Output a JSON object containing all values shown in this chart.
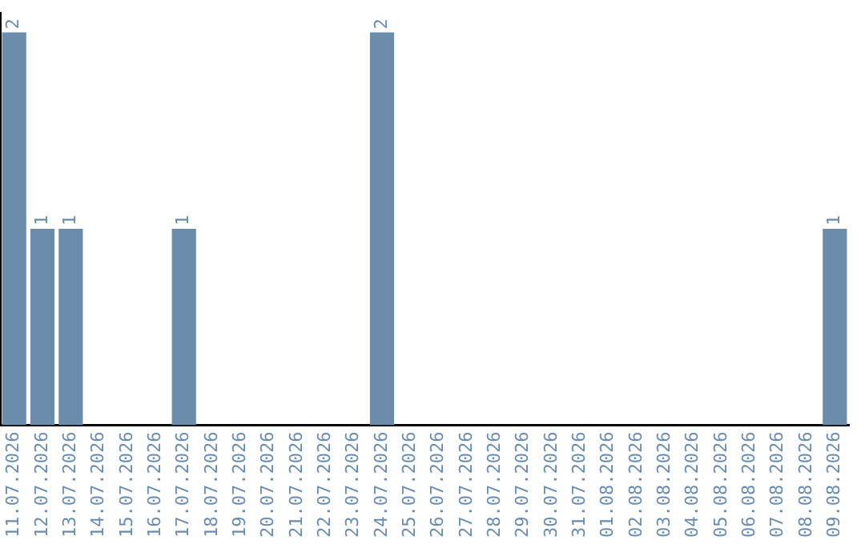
{
  "chart_data": {
    "type": "bar",
    "categories": [
      "11.07.2026",
      "12.07.2026",
      "13.07.2026",
      "14.07.2026",
      "15.07.2026",
      "16.07.2026",
      "17.07.2026",
      "18.07.2026",
      "19.07.2026",
      "20.07.2026",
      "21.07.2026",
      "22.07.2026",
      "23.07.2026",
      "24.07.2026",
      "25.07.2026",
      "26.07.2026",
      "27.07.2026",
      "28.07.2026",
      "29.07.2026",
      "30.07.2026",
      "31.07.2026",
      "01.08.2026",
      "02.08.2026",
      "03.08.2026",
      "04.08.2026",
      "05.08.2026",
      "06.08.2026",
      "07.08.2026",
      "08.08.2026",
      "09.08.2026"
    ],
    "values": [
      2,
      1,
      1,
      0,
      0,
      0,
      1,
      0,
      0,
      0,
      0,
      0,
      0,
      2,
      0,
      0,
      0,
      0,
      0,
      0,
      0,
      0,
      0,
      0,
      0,
      0,
      0,
      0,
      0,
      1
    ],
    "value_labels": [
      "2",
      "1",
      "1",
      null,
      null,
      null,
      "1",
      null,
      null,
      null,
      null,
      null,
      null,
      "2",
      null,
      null,
      null,
      null,
      null,
      null,
      null,
      null,
      null,
      null,
      null,
      null,
      null,
      null,
      null,
      "1"
    ],
    "color": "#6b8cab",
    "ylim": [
      0,
      2.1
    ],
    "tick_labels": "x",
    "grid": false,
    "legend": false
  }
}
